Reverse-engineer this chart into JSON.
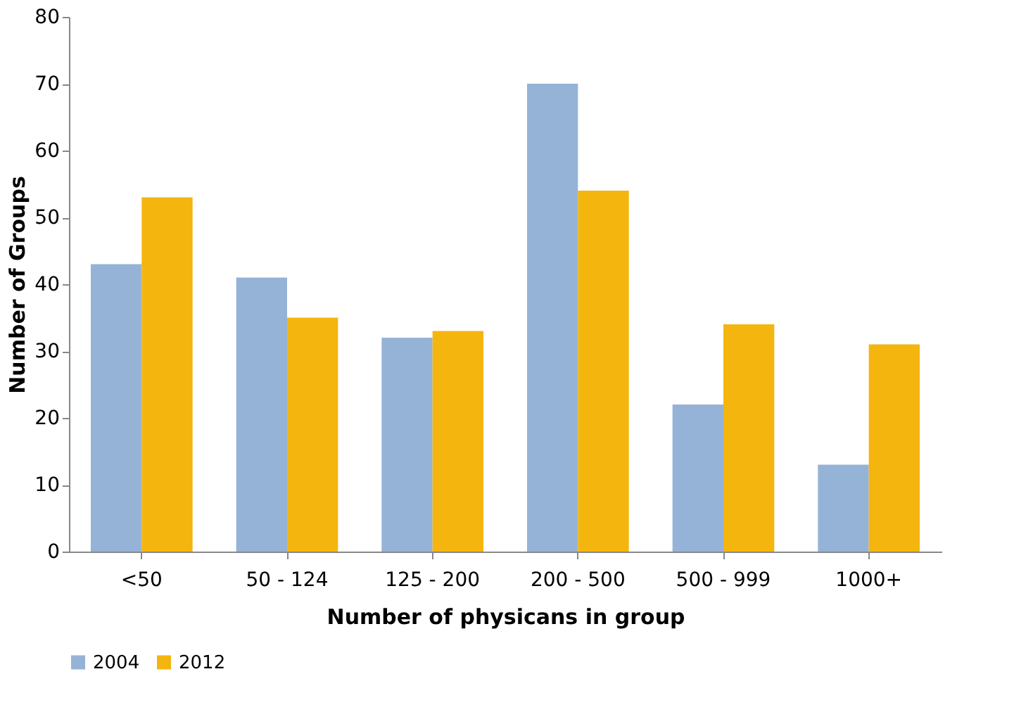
{
  "chart_data": {
    "type": "bar",
    "xlabel": "Number of physicans in group",
    "ylabel": "Number of Groups",
    "categories": [
      "<50",
      "50 - 124",
      "125 - 200",
      "200 - 500",
      "500 - 999",
      "1000+"
    ],
    "series": [
      {
        "name": "2004",
        "color": "#95b3d7",
        "values": [
          43,
          41,
          32,
          70,
          22,
          13
        ]
      },
      {
        "name": "2012",
        "color": "#f5b50f",
        "values": [
          53,
          35,
          33,
          54,
          34,
          31
        ]
      }
    ],
    "ylim": [
      0,
      80
    ],
    "yticks": [
      0,
      10,
      20,
      30,
      40,
      50,
      60,
      70,
      80
    ],
    "grid": false,
    "legend": "bottom"
  }
}
